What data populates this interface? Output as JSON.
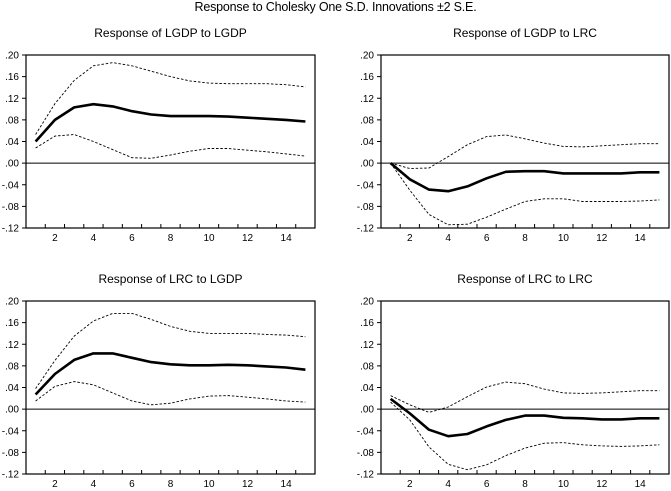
{
  "title": "Response to Cholesky One S.D. Innovations ±2 S.E.",
  "chart_data": [
    {
      "type": "line",
      "title": "Response of LGDP to LGDP",
      "x": [
        1,
        2,
        3,
        4,
        5,
        6,
        7,
        8,
        9,
        10,
        11,
        12,
        13,
        14,
        15
      ],
      "xticks": [
        2,
        4,
        6,
        8,
        10,
        12,
        14
      ],
      "yticks": [
        ".20",
        ".16",
        ".12",
        ".08",
        ".04",
        ".00",
        "-.04",
        "-.08",
        "-.12"
      ],
      "ylim": [
        -0.12,
        0.2
      ],
      "xlim": [
        0.5,
        15.5
      ],
      "grid": false,
      "series": [
        {
          "name": "Response",
          "style": "solid",
          "values": [
            0.04,
            0.08,
            0.103,
            0.109,
            0.105,
            0.096,
            0.09,
            0.087,
            0.087,
            0.087,
            0.086,
            0.084,
            0.082,
            0.08,
            0.077
          ]
        },
        {
          "name": "+2 S.E.",
          "style": "dashed",
          "values": [
            0.053,
            0.11,
            0.153,
            0.18,
            0.186,
            0.18,
            0.17,
            0.16,
            0.152,
            0.148,
            0.147,
            0.147,
            0.147,
            0.145,
            0.141
          ]
        },
        {
          "name": "-2 S.E.",
          "style": "dashed",
          "values": [
            0.028,
            0.05,
            0.053,
            0.04,
            0.025,
            0.01,
            0.009,
            0.015,
            0.022,
            0.027,
            0.027,
            0.024,
            0.021,
            0.017,
            0.013
          ]
        }
      ]
    },
    {
      "type": "line",
      "title": "Response of LGDP to LRC",
      "x": [
        1,
        2,
        3,
        4,
        5,
        6,
        7,
        8,
        9,
        10,
        11,
        12,
        13,
        14,
        15
      ],
      "xticks": [
        2,
        4,
        6,
        8,
        10,
        12,
        14
      ],
      "yticks": [
        ".20",
        ".16",
        ".12",
        ".08",
        ".04",
        ".00",
        "-.04",
        "-.08",
        "-.12"
      ],
      "ylim": [
        -0.12,
        0.2
      ],
      "xlim": [
        0.5,
        15.5
      ],
      "grid": false,
      "series": [
        {
          "name": "Response",
          "style": "solid",
          "values": [
            0.0,
            -0.03,
            -0.049,
            -0.052,
            -0.043,
            -0.028,
            -0.016,
            -0.015,
            -0.015,
            -0.019,
            -0.019,
            -0.019,
            -0.019,
            -0.017,
            -0.017
          ]
        },
        {
          "name": "+2 S.E.",
          "style": "dashed",
          "values": [
            0.0,
            -0.01,
            -0.009,
            0.012,
            0.034,
            0.049,
            0.052,
            0.045,
            0.037,
            0.031,
            0.03,
            0.032,
            0.034,
            0.036,
            0.036
          ]
        },
        {
          "name": "-2 S.E.",
          "style": "dashed",
          "values": [
            0.0,
            -0.05,
            -0.095,
            -0.114,
            -0.113,
            -0.1,
            -0.085,
            -0.071,
            -0.066,
            -0.066,
            -0.071,
            -0.071,
            -0.071,
            -0.07,
            -0.068
          ]
        }
      ]
    },
    {
      "type": "line",
      "title": "Response of LRC to LGDP",
      "x": [
        1,
        2,
        3,
        4,
        5,
        6,
        7,
        8,
        9,
        10,
        11,
        12,
        13,
        14,
        15
      ],
      "xticks": [
        2,
        4,
        6,
        8,
        10,
        12,
        14
      ],
      "yticks": [
        ".20",
        ".16",
        ".12",
        ".08",
        ".04",
        ".00",
        "-.04",
        "-.08",
        "-.12"
      ],
      "ylim": [
        -0.12,
        0.2
      ],
      "xlim": [
        0.5,
        15.5
      ],
      "grid": false,
      "series": [
        {
          "name": "Response",
          "style": "solid",
          "values": [
            0.027,
            0.065,
            0.091,
            0.103,
            0.103,
            0.095,
            0.087,
            0.083,
            0.081,
            0.081,
            0.082,
            0.081,
            0.079,
            0.077,
            0.073
          ]
        },
        {
          "name": "+2 S.E.",
          "style": "dashed",
          "values": [
            0.038,
            0.09,
            0.135,
            0.163,
            0.177,
            0.177,
            0.166,
            0.153,
            0.144,
            0.14,
            0.14,
            0.14,
            0.138,
            0.137,
            0.134
          ]
        },
        {
          "name": "-2 S.E.",
          "style": "dashed",
          "values": [
            0.015,
            0.042,
            0.051,
            0.045,
            0.03,
            0.015,
            0.008,
            0.011,
            0.019,
            0.024,
            0.025,
            0.022,
            0.019,
            0.015,
            0.013
          ]
        }
      ]
    },
    {
      "type": "line",
      "title": "Response of LRC to LRC",
      "x": [
        1,
        2,
        3,
        4,
        5,
        6,
        7,
        8,
        9,
        10,
        11,
        12,
        13,
        14,
        15
      ],
      "xticks": [
        2,
        4,
        6,
        8,
        10,
        12,
        14
      ],
      "yticks": [
        ".20",
        ".16",
        ".12",
        ".08",
        ".04",
        ".00",
        "-.04",
        "-.08",
        "-.12"
      ],
      "ylim": [
        -0.12,
        0.2
      ],
      "xlim": [
        0.5,
        15.5
      ],
      "grid": false,
      "series": [
        {
          "name": "Response",
          "style": "solid",
          "values": [
            0.019,
            -0.008,
            -0.038,
            -0.05,
            -0.046,
            -0.032,
            -0.02,
            -0.012,
            -0.012,
            -0.016,
            -0.017,
            -0.019,
            -0.019,
            -0.017,
            -0.017
          ]
        },
        {
          "name": "+2 S.E.",
          "style": "dashed",
          "values": [
            0.025,
            0.008,
            -0.006,
            0.004,
            0.023,
            0.041,
            0.05,
            0.047,
            0.037,
            0.03,
            0.029,
            0.03,
            0.032,
            0.034,
            0.034
          ]
        },
        {
          "name": "-2 S.E.",
          "style": "dashed",
          "values": [
            0.013,
            -0.02,
            -0.07,
            -0.102,
            -0.112,
            -0.103,
            -0.086,
            -0.072,
            -0.063,
            -0.062,
            -0.066,
            -0.068,
            -0.069,
            -0.068,
            -0.066
          ]
        }
      ]
    }
  ]
}
